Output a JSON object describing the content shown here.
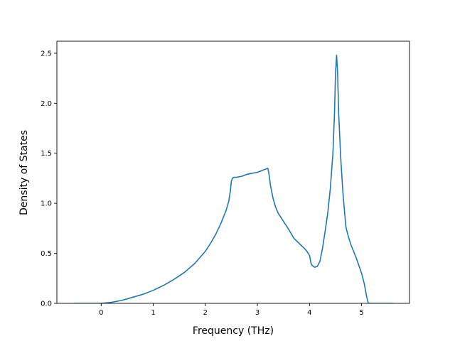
{
  "chart_data": {
    "type": "line",
    "title": "",
    "xlabel": "Frequency (THz)",
    "ylabel": "Density of States",
    "xlim": [
      -0.85,
      5.92
    ],
    "ylim": [
      0,
      2.62
    ],
    "xticks": [
      0,
      1,
      2,
      3,
      4,
      5
    ],
    "yticks": [
      0.0,
      0.5,
      1.0,
      1.5,
      2.0,
      2.5
    ],
    "xtick_labels": [
      "0",
      "1",
      "2",
      "3",
      "4",
      "5"
    ],
    "ytick_labels": [
      "0.0",
      "0.5",
      "1.0",
      "1.5",
      "2.0",
      "2.5"
    ],
    "grid": false,
    "legend": "none",
    "series": [
      {
        "color": "#1f77b4",
        "x": [
          -0.52,
          -0.3,
          0.0,
          0.2,
          0.4,
          0.6,
          0.8,
          1.0,
          1.2,
          1.4,
          1.6,
          1.8,
          2.0,
          2.1,
          2.2,
          2.3,
          2.4,
          2.45,
          2.48,
          2.5,
          2.52,
          2.55,
          2.6,
          2.7,
          2.8,
          2.9,
          3.0,
          3.1,
          3.15,
          3.2,
          3.22,
          3.25,
          3.3,
          3.35,
          3.4,
          3.5,
          3.6,
          3.7,
          3.8,
          3.9,
          3.95,
          4.0,
          4.03,
          4.05,
          4.1,
          4.15,
          4.2,
          4.25,
          4.3,
          4.35,
          4.4,
          4.45,
          4.48,
          4.5,
          4.52,
          4.54,
          4.56,
          4.6,
          4.63,
          4.65,
          4.7,
          4.75,
          4.8,
          4.9,
          5.0,
          5.05,
          5.1,
          5.13,
          5.2,
          5.4,
          5.6
        ],
        "y": [
          0.0,
          0.0,
          0.0,
          0.01,
          0.03,
          0.06,
          0.09,
          0.13,
          0.18,
          0.24,
          0.31,
          0.4,
          0.52,
          0.6,
          0.69,
          0.8,
          0.93,
          1.02,
          1.12,
          1.22,
          1.25,
          1.26,
          1.26,
          1.27,
          1.29,
          1.3,
          1.31,
          1.33,
          1.34,
          1.35,
          1.3,
          1.18,
          1.05,
          0.96,
          0.9,
          0.82,
          0.74,
          0.65,
          0.6,
          0.55,
          0.52,
          0.48,
          0.4,
          0.38,
          0.36,
          0.37,
          0.42,
          0.55,
          0.72,
          0.9,
          1.15,
          1.5,
          1.9,
          2.3,
          2.48,
          2.3,
          1.9,
          1.45,
          1.2,
          1.05,
          0.76,
          0.66,
          0.58,
          0.45,
          0.3,
          0.2,
          0.06,
          0.0,
          0.0,
          0.0,
          0.0
        ]
      }
    ]
  }
}
